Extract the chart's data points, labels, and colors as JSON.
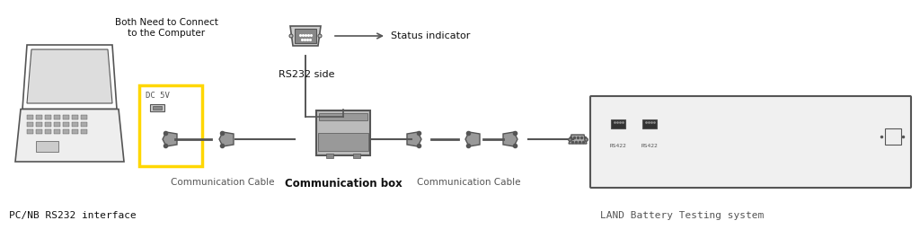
{
  "bg_color": "#ffffff",
  "text_color": "#222222",
  "gray": "#888888",
  "dark_gray": "#555555",
  "light_gray": "#cccccc",
  "yellow": "#FFD700",
  "labels": {
    "pc_nb": "PC/NB RS232 interface",
    "comm_cable1": "Communication Cable",
    "comm_box": "Communication box",
    "comm_cable2": "Communication Cable",
    "land": "LAND Battery Testing system",
    "both_need": "Both Need to Connect",
    "to_computer": "to the Computer",
    "dc5v": "DC 5V",
    "rs232_side": "RS232 side",
    "status_indicator": "Status indicator",
    "rs422_1": "RS422",
    "rs422_2": "RS422"
  },
  "figsize": [
    10.24,
    2.75
  ],
  "dpi": 100
}
